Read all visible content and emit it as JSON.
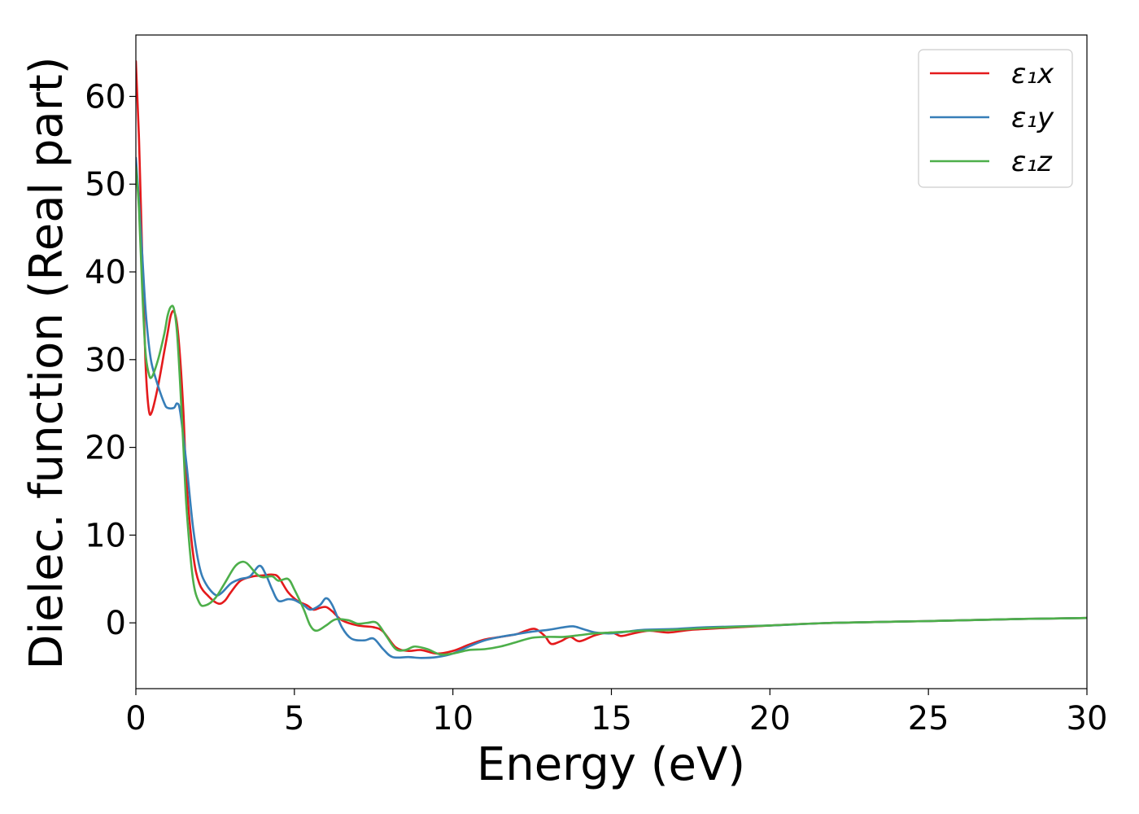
{
  "chart_data": {
    "type": "line",
    "xlabel": "Energy (eV)",
    "ylabel": "Dielec. function (Real part)",
    "xlim": [
      0,
      30
    ],
    "ylim": [
      -7.5,
      67
    ],
    "xticks": [
      0,
      5,
      10,
      15,
      20,
      25,
      30
    ],
    "yticks": [
      0,
      10,
      20,
      30,
      40,
      50,
      60
    ],
    "grid": false,
    "legend_position": "top-right",
    "series": [
      {
        "name": "ε₁x",
        "color": "#e41a1c",
        "points": [
          [
            0,
            64
          ],
          [
            0.1,
            55
          ],
          [
            0.2,
            42
          ],
          [
            0.3,
            30
          ],
          [
            0.4,
            24.5
          ],
          [
            0.5,
            24
          ],
          [
            0.7,
            27
          ],
          [
            0.9,
            31
          ],
          [
            1.0,
            33
          ],
          [
            1.1,
            35
          ],
          [
            1.2,
            35.5
          ],
          [
            1.3,
            34
          ],
          [
            1.4,
            30
          ],
          [
            1.5,
            24
          ],
          [
            1.6,
            16
          ],
          [
            1.8,
            8
          ],
          [
            2.0,
            4.5
          ],
          [
            2.3,
            3
          ],
          [
            2.6,
            2.2
          ],
          [
            2.8,
            2.5
          ],
          [
            3.0,
            3.5
          ],
          [
            3.3,
            4.8
          ],
          [
            3.7,
            5.3
          ],
          [
            4.0,
            5.4
          ],
          [
            4.3,
            5.5
          ],
          [
            4.5,
            5.2
          ],
          [
            4.8,
            3.5
          ],
          [
            5.1,
            2.5
          ],
          [
            5.4,
            2
          ],
          [
            5.6,
            1.5
          ],
          [
            5.8,
            1.7
          ],
          [
            6.0,
            1.8
          ],
          [
            6.2,
            1.3
          ],
          [
            6.5,
            0.3
          ],
          [
            7.0,
            -0.3
          ],
          [
            7.5,
            -0.5
          ],
          [
            7.8,
            -1
          ],
          [
            8.2,
            -2.8
          ],
          [
            8.6,
            -3.2
          ],
          [
            9.0,
            -3.1
          ],
          [
            9.5,
            -3.5
          ],
          [
            10.0,
            -3.2
          ],
          [
            10.5,
            -2.5
          ],
          [
            11.0,
            -1.9
          ],
          [
            11.5,
            -1.6
          ],
          [
            12.0,
            -1.3
          ],
          [
            12.3,
            -0.9
          ],
          [
            12.6,
            -0.7
          ],
          [
            12.9,
            -1.5
          ],
          [
            13.1,
            -2.4
          ],
          [
            13.4,
            -2.1
          ],
          [
            13.7,
            -1.6
          ],
          [
            14.0,
            -2.1
          ],
          [
            14.5,
            -1.4
          ],
          [
            15.0,
            -1.1
          ],
          [
            15.3,
            -1.5
          ],
          [
            15.7,
            -1.2
          ],
          [
            16.2,
            -0.9
          ],
          [
            16.8,
            -1.1
          ],
          [
            17.5,
            -0.8
          ],
          [
            18.5,
            -0.6
          ],
          [
            20,
            -0.3
          ],
          [
            22,
            0
          ],
          [
            25,
            0.2
          ],
          [
            28,
            0.45
          ],
          [
            30,
            0.55
          ]
        ]
      },
      {
        "name": "ε₁y",
        "color": "#377eb8",
        "points": [
          [
            0,
            53
          ],
          [
            0.1,
            48
          ],
          [
            0.2,
            42
          ],
          [
            0.3,
            36
          ],
          [
            0.4,
            32
          ],
          [
            0.5,
            29.5
          ],
          [
            0.7,
            27
          ],
          [
            0.9,
            25
          ],
          [
            1.0,
            24.5
          ],
          [
            1.2,
            24.5
          ],
          [
            1.3,
            25
          ],
          [
            1.4,
            24
          ],
          [
            1.6,
            18
          ],
          [
            1.8,
            11
          ],
          [
            2.0,
            6.5
          ],
          [
            2.2,
            4.5
          ],
          [
            2.5,
            3.2
          ],
          [
            2.7,
            3.4
          ],
          [
            3.0,
            4.5
          ],
          [
            3.3,
            5
          ],
          [
            3.6,
            5.3
          ],
          [
            3.9,
            6.5
          ],
          [
            4.1,
            5.5
          ],
          [
            4.3,
            3.8
          ],
          [
            4.5,
            2.5
          ],
          [
            4.8,
            2.7
          ],
          [
            5.0,
            2.6
          ],
          [
            5.3,
            2
          ],
          [
            5.5,
            1.5
          ],
          [
            5.8,
            2
          ],
          [
            6.0,
            2.8
          ],
          [
            6.2,
            2
          ],
          [
            6.5,
            -0.5
          ],
          [
            6.8,
            -1.8
          ],
          [
            7.2,
            -2
          ],
          [
            7.5,
            -1.8
          ],
          [
            7.8,
            -3
          ],
          [
            8.1,
            -3.9
          ],
          [
            8.6,
            -3.9
          ],
          [
            9.0,
            -4
          ],
          [
            9.5,
            -3.9
          ],
          [
            10.0,
            -3.5
          ],
          [
            10.5,
            -2.7
          ],
          [
            11.0,
            -2
          ],
          [
            11.5,
            -1.6
          ],
          [
            12.0,
            -1.3
          ],
          [
            12.5,
            -1
          ],
          [
            13.0,
            -0.8
          ],
          [
            13.5,
            -0.5
          ],
          [
            13.8,
            -0.4
          ],
          [
            14.1,
            -0.7
          ],
          [
            14.5,
            -1.1
          ],
          [
            15.0,
            -1.2
          ],
          [
            15.5,
            -1
          ],
          [
            16.0,
            -0.8
          ],
          [
            17.0,
            -0.7
          ],
          [
            18.0,
            -0.5
          ],
          [
            20,
            -0.3
          ],
          [
            22,
            0
          ],
          [
            25,
            0.2
          ],
          [
            28,
            0.45
          ],
          [
            30,
            0.55
          ]
        ]
      },
      {
        "name": "ε₁z",
        "color": "#4daf4a",
        "points": [
          [
            0,
            52
          ],
          [
            0.1,
            47
          ],
          [
            0.2,
            38
          ],
          [
            0.3,
            31
          ],
          [
            0.4,
            28.5
          ],
          [
            0.5,
            28
          ],
          [
            0.7,
            30
          ],
          [
            0.9,
            33
          ],
          [
            1.0,
            35
          ],
          [
            1.1,
            36
          ],
          [
            1.2,
            35.8
          ],
          [
            1.3,
            33
          ],
          [
            1.4,
            27
          ],
          [
            1.5,
            20
          ],
          [
            1.6,
            13
          ],
          [
            1.8,
            5
          ],
          [
            2.0,
            2.3
          ],
          [
            2.2,
            2
          ],
          [
            2.5,
            2.8
          ],
          [
            2.8,
            4.5
          ],
          [
            3.1,
            6.3
          ],
          [
            3.3,
            6.9
          ],
          [
            3.5,
            6.8
          ],
          [
            3.8,
            5.6
          ],
          [
            4.0,
            5.2
          ],
          [
            4.3,
            5.3
          ],
          [
            4.5,
            4.8
          ],
          [
            4.8,
            5
          ],
          [
            5.0,
            3.8
          ],
          [
            5.3,
            1.5
          ],
          [
            5.5,
            -0.3
          ],
          [
            5.7,
            -0.9
          ],
          [
            6.0,
            -0.3
          ],
          [
            6.3,
            0.4
          ],
          [
            6.7,
            0.3
          ],
          [
            7.0,
            -0.1
          ],
          [
            7.3,
            0
          ],
          [
            7.6,
            0
          ],
          [
            7.9,
            -1.5
          ],
          [
            8.2,
            -3
          ],
          [
            8.5,
            -3.1
          ],
          [
            8.8,
            -2.7
          ],
          [
            9.2,
            -3
          ],
          [
            9.6,
            -3.6
          ],
          [
            10.0,
            -3.5
          ],
          [
            10.5,
            -3.1
          ],
          [
            11.0,
            -3
          ],
          [
            11.5,
            -2.7
          ],
          [
            12.0,
            -2.2
          ],
          [
            12.5,
            -1.7
          ],
          [
            13.0,
            -1.6
          ],
          [
            13.5,
            -1.6
          ],
          [
            14.0,
            -1.4
          ],
          [
            14.5,
            -1.2
          ],
          [
            15.0,
            -1.1
          ],
          [
            15.5,
            -1
          ],
          [
            16.0,
            -0.9
          ],
          [
            17.0,
            -0.8
          ],
          [
            18.0,
            -0.6
          ],
          [
            20,
            -0.3
          ],
          [
            22,
            0
          ],
          [
            25,
            0.2
          ],
          [
            28,
            0.45
          ],
          [
            30,
            0.55
          ]
        ]
      }
    ]
  }
}
